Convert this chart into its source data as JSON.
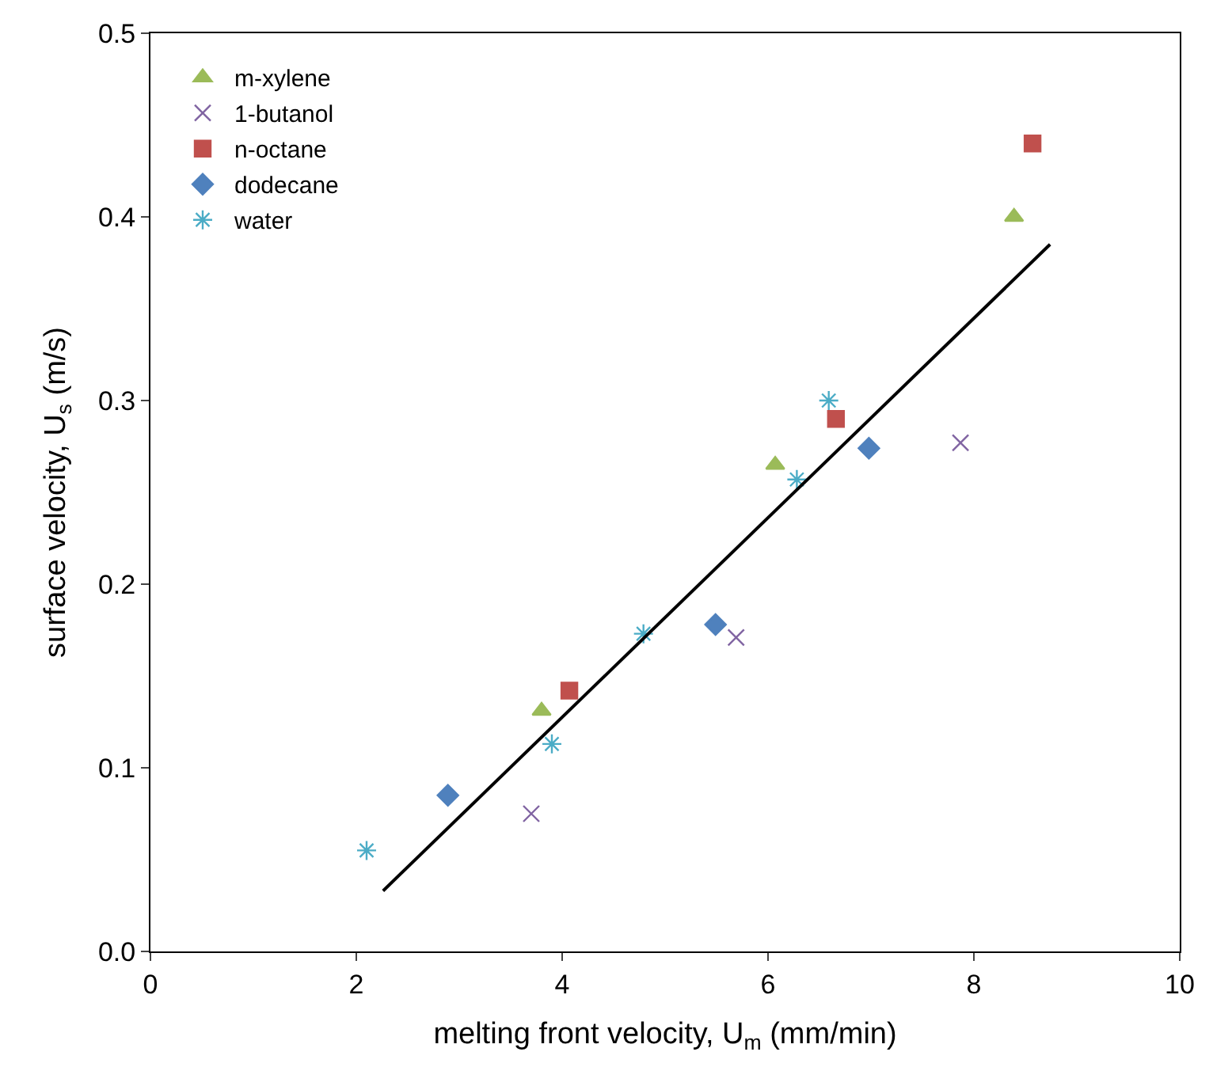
{
  "chart_data": {
    "type": "scatter",
    "xlabel": "melting front velocity, U$_{m}$ (mm/min)",
    "ylabel": "surface velocity, U$_{s}$ (m/s)",
    "xlim": [
      0,
      10
    ],
    "xticks": [
      0,
      2,
      4,
      6,
      8,
      10
    ],
    "ylim": [
      0,
      0.5
    ],
    "yticks": [
      {
        "value": 0,
        "label": "0.0"
      },
      0.1,
      0.2,
      0.3,
      0.4,
      0.5
    ],
    "legend": "top left",
    "series": [
      {
        "name": "m-xylene",
        "color": "#9bbb59",
        "marker": "triangle",
        "x": [
          3.8,
          6.07,
          8.39
        ],
        "values": [
          0.131,
          0.265,
          0.4
        ]
      },
      {
        "name": "1-butanol",
        "color": "#8064a2",
        "marker": "cross",
        "x": [
          3.7,
          5.69,
          7.87
        ],
        "values": [
          0.075,
          0.171,
          0.277
        ]
      },
      {
        "name": "n-octane",
        "color": "#c0504d",
        "marker": "square",
        "x": [
          4.07,
          6.66,
          8.57
        ],
        "values": [
          0.142,
          0.29,
          0.44
        ]
      },
      {
        "name": "dodecane",
        "color": "#4f81bd",
        "marker": "diamond",
        "x": [
          2.89,
          5.49,
          6.98
        ],
        "values": [
          0.085,
          0.178,
          0.274
        ]
      },
      {
        "name": "water",
        "color": "#4bacc6",
        "marker": "cross",
        "x": [
          2.1,
          3.9,
          4.79,
          6.28,
          6.59
        ],
        "values": [
          0.055,
          0.113,
          0.173,
          0.257,
          0.3
        ]
      },
      {
        "type": "line",
        "color": "#000000",
        "x": [
          2.26,
          8.74
        ],
        "values": [
          0.033,
          0.385
        ]
      }
    ]
  }
}
